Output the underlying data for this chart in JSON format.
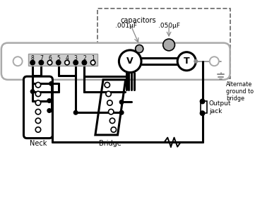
{
  "bg_color": "#ffffff",
  "line_color": "#000000",
  "gray_color": "#888888",
  "plate_color": "#aaaaaa",
  "switch_bg": "#cccccc",
  "cap_color": "#aaaaaa",
  "dashed_color": "#666666",
  "title_text": "capacitors",
  "cap1_text": ".001μF",
  "cap2_text": ".050μF",
  "alt_ground_text": "Alternate\nground to\nbridge",
  "output_jack_text": "Output\njack",
  "neck_text": "Neck",
  "bridge_text": "Bridge",
  "switch_numbers": [
    "8",
    "7",
    "6",
    "5",
    "4",
    "3",
    "2",
    "1"
  ],
  "figsize": [
    3.61,
    3.0
  ],
  "dpi": 100
}
